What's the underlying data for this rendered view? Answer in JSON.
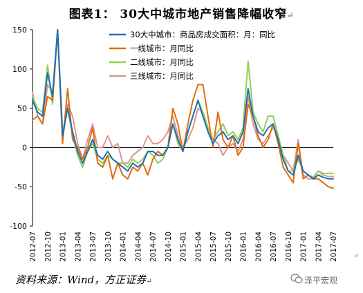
{
  "figure": {
    "title": "图表1：  30大中城市地产销售降幅收窄",
    "title_mark": "↵",
    "source": "资料来源：Wind，方正证券",
    "source_mark": "↵",
    "stray_mark": "↵",
    "brand": "泽平宏观",
    "brand_icon": "wechat-icon"
  },
  "chart_data": {
    "type": "line",
    "title": "",
    "xlabel": "",
    "ylabel": "",
    "ylim": [
      -100,
      150
    ],
    "yticks": [
      150,
      100,
      50,
      0,
      -50,
      -100
    ],
    "grid": false,
    "legend_position": "top-right",
    "x": [
      "2012-07",
      "2012-08",
      "2012-09",
      "2012-10",
      "2012-11",
      "2012-12",
      "2013-01",
      "2013-02",
      "2013-03",
      "2013-04",
      "2013-05",
      "2013-06",
      "2013-07",
      "2013-08",
      "2013-09",
      "2013-10",
      "2013-11",
      "2013-12",
      "2014-01",
      "2014-02",
      "2014-03",
      "2014-04",
      "2014-05",
      "2014-06",
      "2014-07",
      "2014-08",
      "2014-09",
      "2014-10",
      "2014-11",
      "2014-12",
      "2015-01",
      "2015-02",
      "2015-03",
      "2015-04",
      "2015-05",
      "2015-06",
      "2015-07",
      "2015-08",
      "2015-09",
      "2015-10",
      "2015-11",
      "2015-12",
      "2016-01",
      "2016-02",
      "2016-03",
      "2016-04",
      "2016-05",
      "2016-06",
      "2016-07",
      "2016-08",
      "2016-09",
      "2016-10",
      "2016-11",
      "2016-12",
      "2017-01",
      "2017-02",
      "2017-03",
      "2017-04",
      "2017-05",
      "2017-06",
      "2017-07"
    ],
    "xticks": [
      "2012-07",
      "2012-10",
      "2013-01",
      "2013-04",
      "2013-07",
      "2013-10",
      "2014-01",
      "2014-04",
      "2014-07",
      "2014-10",
      "2015-01",
      "2015-04",
      "2015-07",
      "2015-10",
      "2016-01",
      "2016-04",
      "2016-07",
      "2016-10",
      "2017-01",
      "2017-04",
      "2017-07"
    ],
    "series": [
      {
        "name": "30大中城市：商品房成交面积：月：同比",
        "color": "#1f6fb5",
        "values": [
          60,
          45,
          40,
          95,
          65,
          150,
          15,
          50,
          20,
          -5,
          -20,
          -5,
          10,
          -10,
          -15,
          -5,
          -15,
          -20,
          -25,
          -30,
          -20,
          -25,
          -20,
          -5,
          -5,
          -10,
          -10,
          0,
          30,
          10,
          -5,
          20,
          40,
          60,
          40,
          20,
          5,
          15,
          20,
          10,
          15,
          5,
          20,
          75,
          40,
          20,
          15,
          25,
          30,
          10,
          -15,
          -30,
          -35,
          -10,
          -30,
          -35,
          -40,
          -35,
          -38,
          -40,
          -40
        ]
      },
      {
        "name": "一线城市：月同比",
        "color": "#e36c0a",
        "values": [
          35,
          40,
          30,
          65,
          60,
          150,
          5,
          75,
          10,
          0,
          -15,
          0,
          25,
          -20,
          -25,
          -10,
          -40,
          -20,
          -35,
          -40,
          -25,
          -30,
          -20,
          -35,
          -15,
          -5,
          -10,
          0,
          50,
          30,
          -5,
          30,
          60,
          80,
          80,
          40,
          0,
          45,
          10,
          0,
          15,
          -10,
          0,
          55,
          40,
          15,
          0,
          10,
          30,
          5,
          -25,
          -35,
          -45,
          5,
          -40,
          -35,
          -40,
          -40,
          -45,
          -50,
          -52
        ]
      },
      {
        "name": "二线城市：月同比",
        "color": "#92d050",
        "values": [
          65,
          50,
          45,
          105,
          55,
          150,
          20,
          50,
          15,
          -10,
          -25,
          -5,
          5,
          -15,
          -20,
          -10,
          -15,
          -20,
          -20,
          -25,
          -15,
          -20,
          -15,
          -5,
          -10,
          -20,
          -15,
          0,
          30,
          5,
          -5,
          20,
          40,
          60,
          45,
          25,
          10,
          20,
          30,
          15,
          20,
          10,
          25,
          110,
          45,
          30,
          20,
          40,
          40,
          15,
          -10,
          -30,
          -30,
          -15,
          -30,
          -35,
          -38,
          -30,
          -33,
          -33,
          -33
        ]
      },
      {
        "name": "三线城市：月同比",
        "color": "#d99694",
        "values": [
          70,
          40,
          30,
          80,
          70,
          150,
          10,
          55,
          40,
          5,
          -15,
          10,
          30,
          0,
          0,
          15,
          0,
          5,
          -20,
          -20,
          -10,
          -5,
          0,
          15,
          5,
          5,
          10,
          20,
          40,
          15,
          0,
          10,
          25,
          50,
          45,
          25,
          10,
          5,
          -10,
          0,
          5,
          -5,
          10,
          65,
          30,
          10,
          5,
          15,
          25,
          15,
          -10,
          -20,
          -30,
          10,
          -35,
          -40,
          -40,
          -30,
          -35,
          -37,
          -37
        ]
      }
    ]
  }
}
